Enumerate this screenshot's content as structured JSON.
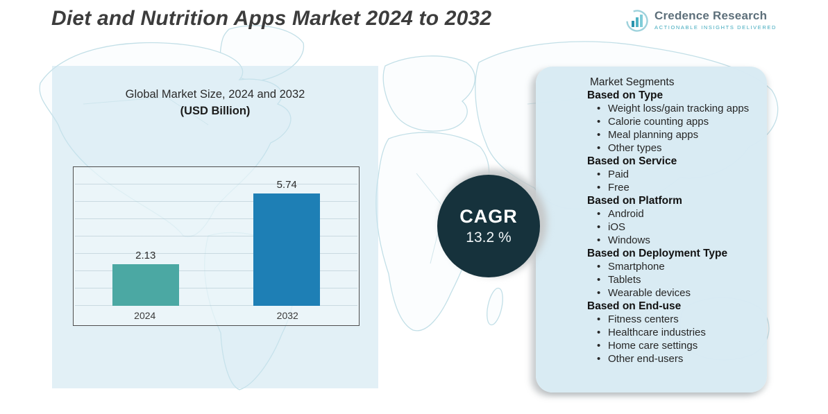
{
  "title": "Diet and Nutrition Apps Market 2024 to 2032",
  "logo": {
    "name": "Credence Research",
    "tagline": "ACTIONABLE INSIGHTS DELIVERED"
  },
  "chart_data": {
    "type": "bar",
    "title": "Global Market Size, 2024 and 2032",
    "subtitle": "(USD Billion)",
    "categories": [
      "2024",
      "2032"
    ],
    "values": [
      2.13,
      5.74
    ],
    "value_labels": [
      "2.13",
      "5.74"
    ],
    "bar_colors": [
      "#4BA8A3",
      "#1E7FB5"
    ],
    "ylim": [
      0,
      7
    ],
    "grid": true,
    "legend": false,
    "xlabel": "",
    "ylabel": ""
  },
  "cagr": {
    "label": "CAGR",
    "value": "13.2 %"
  },
  "segments": {
    "title": "Market Segments",
    "groups": [
      {
        "heading": "Based on Type",
        "items": [
          "Weight loss/gain tracking apps",
          "Calorie counting apps",
          "Meal planning apps",
          "Other types"
        ]
      },
      {
        "heading": "Based on Service",
        "items": [
          "Paid",
          "Free"
        ]
      },
      {
        "heading": "Based on Platform",
        "items": [
          "Android",
          "iOS",
          "Windows"
        ]
      },
      {
        "heading": "Based on Deployment Type",
        "items": [
          "Smartphone",
          "Tablets",
          "Wearable devices"
        ]
      },
      {
        "heading": "Based on End-use",
        "items": [
          "Fitness centers",
          "Healthcare industries",
          "Home care settings",
          "Other end-users"
        ]
      }
    ]
  },
  "colors": {
    "bar_2024": "#4BA8A3",
    "bar_2032": "#1E7FB5",
    "cagr_circle": "#16323C",
    "panel_blue": "#D8EAF3",
    "brand_teal": "#3FA9BD",
    "brand_gray": "#5D6F7A"
  }
}
